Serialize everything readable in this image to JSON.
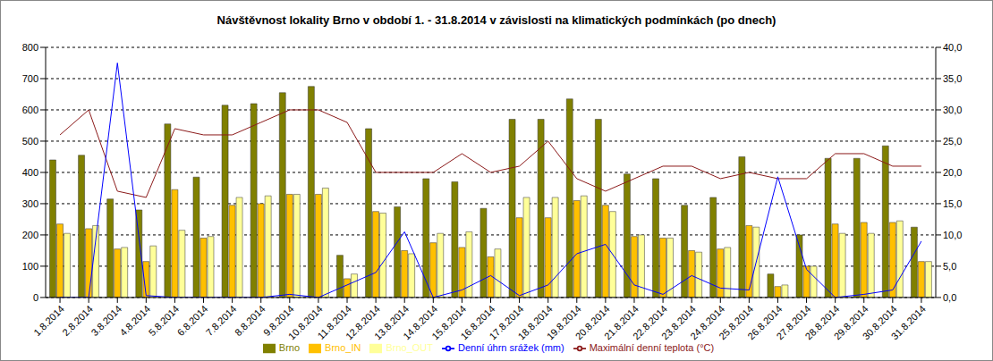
{
  "chart_data": {
    "type": "bar",
    "title": "Návštěvnost lokality Brno v období 1. - 31.8.2014 v závislosti na klimatických podmínkách (po dnech)",
    "categories": [
      "1.8.2014",
      "2.8.2014",
      "3.8.2014",
      "4.8.2014",
      "5.8.2014",
      "6.8.2014",
      "7.8.2014",
      "8.8.2014",
      "9.8.2014",
      "10.8.2014",
      "11.8.2014",
      "12.8.2014",
      "13.8.2014",
      "14.8.2014",
      "15.8.2014",
      "16.8.2014",
      "17.8.2014",
      "18.8.2014",
      "19.8.2014",
      "20.8.2014",
      "21.8.2014",
      "22.8.2014",
      "23.8.2014",
      "24.8.2014",
      "25.8.2014",
      "26.8.2014",
      "27.8.2014",
      "28.8.2014",
      "29.8.2014",
      "30.8.2014",
      "31.8.2014"
    ],
    "series": [
      {
        "name": "Brno",
        "type": "bar",
        "color": "#808000",
        "values": [
          440,
          455,
          315,
          280,
          555,
          385,
          615,
          620,
          655,
          675,
          135,
          540,
          290,
          380,
          370,
          285,
          570,
          570,
          635,
          570,
          395,
          380,
          295,
          320,
          450,
          75,
          200,
          445,
          445,
          485,
          225
        ]
      },
      {
        "name": "Brno_IN",
        "type": "bar",
        "color": "#ffc000",
        "values": [
          235,
          220,
          155,
          115,
          345,
          190,
          295,
          300,
          330,
          330,
          60,
          275,
          150,
          175,
          160,
          130,
          255,
          255,
          310,
          295,
          195,
          190,
          150,
          155,
          230,
          35,
          100,
          235,
          240,
          240,
          115
        ]
      },
      {
        "name": "Brno_OUT",
        "type": "bar",
        "color": "#ffff99",
        "values": [
          205,
          230,
          160,
          165,
          215,
          195,
          320,
          325,
          330,
          350,
          75,
          270,
          140,
          205,
          210,
          155,
          320,
          320,
          325,
          275,
          200,
          190,
          145,
          160,
          225,
          40,
          100,
          205,
          205,
          245,
          115
        ]
      },
      {
        "name": "Maximální denní teplota (°C)",
        "type": "line",
        "axis": "y2",
        "color": "#8b1a1a",
        "values": [
          26,
          30,
          17,
          16,
          27,
          26,
          26,
          28,
          30,
          30,
          28,
          20,
          20,
          20,
          23,
          20,
          21,
          25,
          19,
          17,
          19,
          21,
          21,
          19,
          20,
          19,
          19,
          23,
          23,
          21,
          21
        ]
      },
      {
        "name": "Denní úhrn srážek (mm)",
        "type": "line",
        "axis": "y2",
        "color": "#0000ff",
        "values": [
          0,
          0,
          37.5,
          0.3,
          0,
          0,
          0,
          0,
          0.5,
          0,
          2,
          4,
          10.5,
          0,
          1.2,
          3.5,
          0.3,
          2,
          7,
          8.5,
          2,
          0.5,
          3.5,
          1.5,
          1.2,
          19.3,
          4.5,
          0,
          0.5,
          1.2,
          9
        ]
      }
    ],
    "ylim": [
      0,
      800
    ],
    "yticks": [
      0,
      100,
      200,
      300,
      400,
      500,
      600,
      700,
      800
    ],
    "y2lim": [
      0,
      40
    ],
    "y2ticks": [
      {
        "value": 0,
        "label": "0,0"
      },
      {
        "value": 5,
        "label": "5,0"
      },
      {
        "value": 10,
        "label": "10,0"
      },
      {
        "value": 15,
        "label": "15,0"
      },
      {
        "value": 20,
        "label": "20,0"
      },
      {
        "value": 25,
        "label": "25,0"
      },
      {
        "value": 30,
        "label": "30,0"
      },
      {
        "value": 35,
        "label": "35,0"
      },
      {
        "value": 40,
        "label": "40,0"
      }
    ],
    "grid": true,
    "legend": "bottom"
  }
}
